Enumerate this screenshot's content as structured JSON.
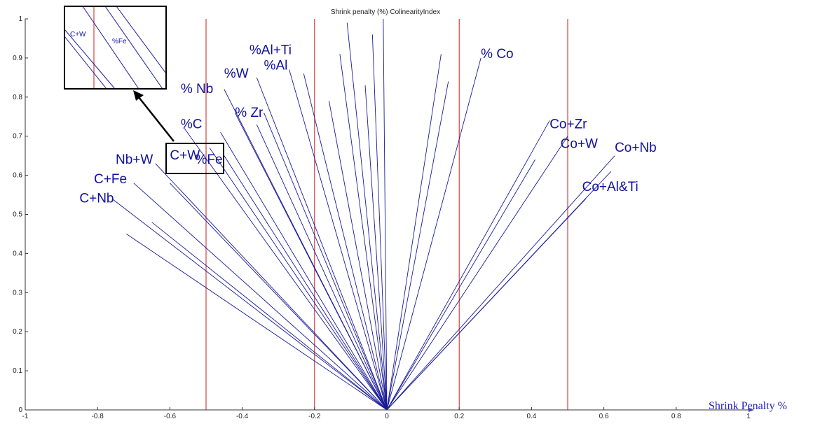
{
  "chart_data": {
    "type": "line",
    "title": "Shrink penalty (%) ColinearityIndex",
    "xlabel": "Shrink Penalty %",
    "ylabel": "",
    "xlim": [
      -1,
      1
    ],
    "ylim": [
      0,
      1
    ],
    "x_ticks": [
      "-1",
      "-0.8",
      "-0.6",
      "-0.4",
      "-0.2",
      "0",
      "0.2",
      "0.4",
      "0.6",
      "0.8",
      "1"
    ],
    "y_ticks": [
      "0",
      "0.1",
      "0.2",
      "0.3",
      "0.4",
      "0.5",
      "0.6",
      "0.7",
      "0.8",
      "0.9",
      "1"
    ],
    "origin": [
      0,
      0
    ],
    "reference_lines_x": [
      -0.5,
      -0.2,
      0.2,
      0.5
    ],
    "vectors": [
      {
        "x": -0.76,
        "y": 0.54
      },
      {
        "x": -0.7,
        "y": 0.58
      },
      {
        "x": -0.64,
        "y": 0.63
      },
      {
        "x": -0.6,
        "y": 0.58
      },
      {
        "x": -0.65,
        "y": 0.48
      },
      {
        "x": -0.72,
        "y": 0.45
      },
      {
        "x": -0.56,
        "y": 0.72
      },
      {
        "x": -0.49,
        "y": 0.67
      },
      {
        "x": -0.46,
        "y": 0.71
      },
      {
        "x": -0.45,
        "y": 0.65
      },
      {
        "x": -0.42,
        "y": 0.76
      },
      {
        "x": -0.45,
        "y": 0.82
      },
      {
        "x": -0.36,
        "y": 0.73
      },
      {
        "x": -0.34,
        "y": 0.76
      },
      {
        "x": -0.36,
        "y": 0.85
      },
      {
        "x": -0.27,
        "y": 0.87
      },
      {
        "x": -0.23,
        "y": 0.86
      },
      {
        "x": -0.16,
        "y": 0.79
      },
      {
        "x": -0.13,
        "y": 0.91
      },
      {
        "x": -0.11,
        "y": 0.99
      },
      {
        "x": -0.04,
        "y": 0.96
      },
      {
        "x": -0.06,
        "y": 0.83
      },
      {
        "x": -0.01,
        "y": 1.0
      },
      {
        "x": 0.15,
        "y": 0.91
      },
      {
        "x": 0.17,
        "y": 0.84
      },
      {
        "x": 0.26,
        "y": 0.9
      },
      {
        "x": 0.45,
        "y": 0.74
      },
      {
        "x": 0.41,
        "y": 0.64
      },
      {
        "x": 0.5,
        "y": 0.7
      },
      {
        "x": 0.63,
        "y": 0.65
      },
      {
        "x": 0.62,
        "y": 0.61
      },
      {
        "x": 0.55,
        "y": 0.54
      }
    ],
    "labels": [
      {
        "text": "C+Nb",
        "x": -0.85,
        "y": 0.53
      },
      {
        "text": "C+Fe",
        "x": -0.81,
        "y": 0.58
      },
      {
        "text": "Nb+W",
        "x": -0.75,
        "y": 0.63
      },
      {
        "text": "C+W",
        "x": -0.6,
        "y": 0.64
      },
      {
        "text": "%Fe",
        "x": -0.53,
        "y": 0.63
      },
      {
        "text": "%C",
        "x": -0.57,
        "y": 0.72
      },
      {
        "text": "% Nb",
        "x": -0.57,
        "y": 0.81
      },
      {
        "text": "% Zr",
        "x": -0.42,
        "y": 0.75
      },
      {
        "text": "%W",
        "x": -0.45,
        "y": 0.85
      },
      {
        "text": "%Al",
        "x": -0.34,
        "y": 0.87
      },
      {
        "text": "%Al+Ti",
        "x": -0.38,
        "y": 0.91
      },
      {
        "text": "% Co",
        "x": 0.26,
        "y": 0.9
      },
      {
        "text": "Co+Zr",
        "x": 0.45,
        "y": 0.72
      },
      {
        "text": "Co+W",
        "x": 0.48,
        "y": 0.67
      },
      {
        "text": "Co+Nb",
        "x": 0.63,
        "y": 0.66
      },
      {
        "text": "Co+Al&Ti",
        "x": 0.54,
        "y": 0.56
      }
    ],
    "inset": {
      "labels": [
        "C+W",
        "%Fe"
      ]
    }
  },
  "colors": {
    "vector": "#1a1a9a",
    "reference_line": "#c41e1e",
    "axis": "#333333",
    "inset_frame": "#000000",
    "x_axis_arrow": "#4040c0"
  }
}
